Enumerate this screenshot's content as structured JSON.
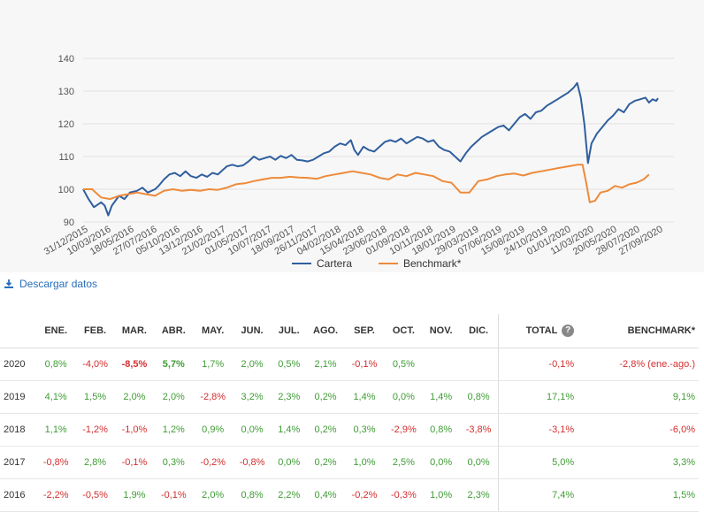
{
  "chart_data": {
    "type": "line",
    "ylim": [
      90,
      140
    ],
    "y_ticks": [
      90,
      100,
      110,
      120,
      130,
      140
    ],
    "x_tick_labels": [
      "31/12/2015",
      "10/03/2016",
      "18/05/2016",
      "27/07/2016",
      "05/10/2016",
      "13/12/2016",
      "21/02/2017",
      "01/05/2017",
      "10/07/2017",
      "18/09/2017",
      "26/11/2017",
      "04/02/2018",
      "15/04/2018",
      "23/06/2018",
      "01/09/2018",
      "10/11/2018",
      "18/01/2019",
      "29/03/2019",
      "07/06/2019",
      "15/08/2019",
      "24/10/2019",
      "01/01/2020",
      "11/03/2020",
      "20/05/2020",
      "28/07/2020",
      "27/09/2020"
    ],
    "grid": true,
    "legend_position": "bottom",
    "colors": {
      "Cartera": "#2f5f9e",
      "Benchmark*": "#ee8a3a"
    },
    "series": [
      {
        "name": "Cartera",
        "points": [
          [
            0,
            100
          ],
          [
            0.3,
            97
          ],
          [
            0.6,
            94.5
          ],
          [
            1.0,
            96
          ],
          [
            1.2,
            95
          ],
          [
            1.4,
            92
          ],
          [
            1.6,
            95
          ],
          [
            2.0,
            98
          ],
          [
            2.3,
            97
          ],
          [
            2.6,
            99
          ],
          [
            3.0,
            99.5
          ],
          [
            3.3,
            100.5
          ],
          [
            3.6,
            99
          ],
          [
            4.0,
            100
          ],
          [
            4.2,
            101
          ],
          [
            4.5,
            103
          ],
          [
            4.8,
            104.5
          ],
          [
            5.1,
            105
          ],
          [
            5.4,
            104
          ],
          [
            5.7,
            105.5
          ],
          [
            6.0,
            104
          ],
          [
            6.3,
            103.5
          ],
          [
            6.6,
            104.5
          ],
          [
            6.9,
            103.8
          ],
          [
            7.2,
            105
          ],
          [
            7.5,
            104.5
          ],
          [
            7.8,
            106
          ],
          [
            8.0,
            107
          ],
          [
            8.3,
            107.5
          ],
          [
            8.6,
            107
          ],
          [
            8.9,
            107.3
          ],
          [
            9.2,
            108.5
          ],
          [
            9.5,
            110
          ],
          [
            9.8,
            109
          ],
          [
            10.1,
            109.5
          ],
          [
            10.4,
            110
          ],
          [
            10.7,
            109
          ],
          [
            11.0,
            110.2
          ],
          [
            11.3,
            109.5
          ],
          [
            11.6,
            110.5
          ],
          [
            11.9,
            109
          ],
          [
            12.2,
            108.8
          ],
          [
            12.5,
            108.5
          ],
          [
            12.8,
            109
          ],
          [
            13.1,
            110
          ],
          [
            13.4,
            111
          ],
          [
            13.7,
            111.5
          ],
          [
            14.0,
            113
          ],
          [
            14.3,
            114
          ],
          [
            14.6,
            113.5
          ],
          [
            14.9,
            115
          ],
          [
            15.1,
            112
          ],
          [
            15.3,
            110.5
          ],
          [
            15.6,
            113
          ],
          [
            15.9,
            112
          ],
          [
            16.2,
            111.5
          ],
          [
            16.5,
            113
          ],
          [
            16.8,
            114.5
          ],
          [
            17.1,
            115
          ],
          [
            17.4,
            114.5
          ],
          [
            17.7,
            115.5
          ],
          [
            18.0,
            114
          ],
          [
            18.3,
            115
          ],
          [
            18.6,
            116
          ],
          [
            18.9,
            115.5
          ],
          [
            19.2,
            114.5
          ],
          [
            19.5,
            115
          ],
          [
            19.8,
            113
          ],
          [
            20.1,
            112
          ],
          [
            20.4,
            111.5
          ],
          [
            20.7,
            110
          ],
          [
            21.0,
            108.5
          ],
          [
            21.3,
            111
          ],
          [
            21.6,
            113
          ],
          [
            21.9,
            114.5
          ],
          [
            22.2,
            116
          ],
          [
            22.5,
            117
          ],
          [
            22.8,
            118
          ],
          [
            23.1,
            119
          ],
          [
            23.4,
            119.5
          ],
          [
            23.7,
            118
          ],
          [
            24.0,
            120
          ],
          [
            24.3,
            122
          ],
          [
            24.6,
            123
          ],
          [
            24.9,
            121.5
          ],
          [
            25.2,
            123.5
          ],
          [
            25.5,
            124
          ],
          [
            25.8,
            125.5
          ],
          [
            26.1,
            126.5
          ],
          [
            26.4,
            127.5
          ],
          [
            26.7,
            128.5
          ],
          [
            27.0,
            129.5
          ],
          [
            27.3,
            131
          ],
          [
            27.5,
            132.5
          ],
          [
            27.7,
            128
          ],
          [
            27.9,
            120
          ],
          [
            28.1,
            108
          ],
          [
            28.3,
            114
          ],
          [
            28.6,
            117
          ],
          [
            28.9,
            119
          ],
          [
            29.2,
            121
          ],
          [
            29.5,
            122.5
          ],
          [
            29.8,
            124.5
          ],
          [
            30.1,
            123.5
          ],
          [
            30.4,
            126
          ],
          [
            30.7,
            127
          ],
          [
            31.0,
            127.5
          ],
          [
            31.3,
            128
          ],
          [
            31.5,
            126.5
          ],
          [
            31.7,
            127.5
          ],
          [
            31.9,
            127
          ],
          [
            32.0,
            127.8
          ]
        ]
      },
      {
        "name": "Benchmark*",
        "points": [
          [
            0,
            100
          ],
          [
            0.5,
            100
          ],
          [
            1.0,
            97.5
          ],
          [
            1.5,
            97
          ],
          [
            2.0,
            98
          ],
          [
            2.5,
            98.5
          ],
          [
            3.0,
            99
          ],
          [
            3.5,
            98.5
          ],
          [
            4.0,
            98
          ],
          [
            4.5,
            99.5
          ],
          [
            5.0,
            100
          ],
          [
            5.5,
            99.5
          ],
          [
            6.0,
            99.8
          ],
          [
            6.5,
            99.5
          ],
          [
            7.0,
            100
          ],
          [
            7.5,
            99.8
          ],
          [
            8.0,
            100.5
          ],
          [
            8.5,
            101.5
          ],
          [
            9.0,
            101.8
          ],
          [
            9.5,
            102.5
          ],
          [
            10.0,
            103
          ],
          [
            10.5,
            103.5
          ],
          [
            11.0,
            103.5
          ],
          [
            11.5,
            103.8
          ],
          [
            12.0,
            103.6
          ],
          [
            12.5,
            103.5
          ],
          [
            13.0,
            103.2
          ],
          [
            13.5,
            104
          ],
          [
            14.0,
            104.5
          ],
          [
            14.5,
            105
          ],
          [
            15.0,
            105.5
          ],
          [
            15.5,
            105
          ],
          [
            16.0,
            104.5
          ],
          [
            16.5,
            103.5
          ],
          [
            17.0,
            103
          ],
          [
            17.5,
            104.5
          ],
          [
            18.0,
            104
          ],
          [
            18.5,
            105
          ],
          [
            19.0,
            104.5
          ],
          [
            19.5,
            104
          ],
          [
            20.0,
            102.5
          ],
          [
            20.5,
            102
          ],
          [
            21.0,
            99
          ],
          [
            21.5,
            99
          ],
          [
            22.0,
            102.5
          ],
          [
            22.5,
            103
          ],
          [
            23.0,
            104
          ],
          [
            23.5,
            104.5
          ],
          [
            24.0,
            104.8
          ],
          [
            24.5,
            104.2
          ],
          [
            25.0,
            105
          ],
          [
            25.5,
            105.5
          ],
          [
            26.0,
            106
          ],
          [
            26.5,
            106.5
          ],
          [
            27.0,
            107
          ],
          [
            27.5,
            107.5
          ],
          [
            27.8,
            107.5
          ],
          [
            28.0,
            102
          ],
          [
            28.2,
            96
          ],
          [
            28.5,
            96.5
          ],
          [
            28.8,
            99
          ],
          [
            29.2,
            99.5
          ],
          [
            29.6,
            101
          ],
          [
            30.0,
            100.5
          ],
          [
            30.4,
            101.5
          ],
          [
            30.8,
            102
          ],
          [
            31.2,
            103
          ],
          [
            31.5,
            104.5
          ]
        ]
      }
    ]
  },
  "download": {
    "label": "Descargar datos",
    "icon": "download-icon"
  },
  "table": {
    "headers": [
      "",
      "ENE.",
      "FEB.",
      "MAR.",
      "ABR.",
      "MAY.",
      "JUN.",
      "JUL.",
      "AGO.",
      "SEP.",
      "OCT.",
      "NOV.",
      "DIC.",
      "TOTAL",
      "BENCHMARK*"
    ],
    "help_icon": "?",
    "rows": [
      {
        "year": "2020",
        "cells": [
          "0,8%",
          "-4,0%",
          "-8,5%",
          "5,7%",
          "1,7%",
          "2,0%",
          "0,5%",
          "2,1%",
          "-0,1%",
          "0,5%",
          "",
          ""
        ],
        "strong": [
          2,
          3
        ],
        "total": "-0,1%",
        "benchmark": "-2,8% (ene.-ago.)"
      },
      {
        "year": "2019",
        "cells": [
          "4,1%",
          "1,5%",
          "2,0%",
          "2,0%",
          "-2,8%",
          "3,2%",
          "2,3%",
          "0,2%",
          "1,4%",
          "0,0%",
          "1,4%",
          "0,8%"
        ],
        "strong": [],
        "total": "17,1%",
        "benchmark": "9,1%"
      },
      {
        "year": "2018",
        "cells": [
          "1,1%",
          "-1,2%",
          "-1,0%",
          "1,2%",
          "0,9%",
          "0,0%",
          "1,4%",
          "0,2%",
          "0,3%",
          "-2,9%",
          "0,8%",
          "-3,8%"
        ],
        "strong": [],
        "total": "-3,1%",
        "benchmark": "-6,0%"
      },
      {
        "year": "2017",
        "cells": [
          "-0,8%",
          "2,8%",
          "-0,1%",
          "0,3%",
          "-0,2%",
          "-0,8%",
          "0,0%",
          "0,2%",
          "1,0%",
          "2,5%",
          "0,0%",
          "0,0%"
        ],
        "strong": [],
        "total": "5,0%",
        "benchmark": "3,3%"
      },
      {
        "year": "2016",
        "cells": [
          "-2,2%",
          "-0,5%",
          "1,9%",
          "-0,1%",
          "2,0%",
          "0,8%",
          "2,2%",
          "0,4%",
          "-0,2%",
          "-0,3%",
          "1,0%",
          "2,3%"
        ],
        "strong": [],
        "total": "7,4%",
        "benchmark": "1,5%"
      }
    ]
  }
}
